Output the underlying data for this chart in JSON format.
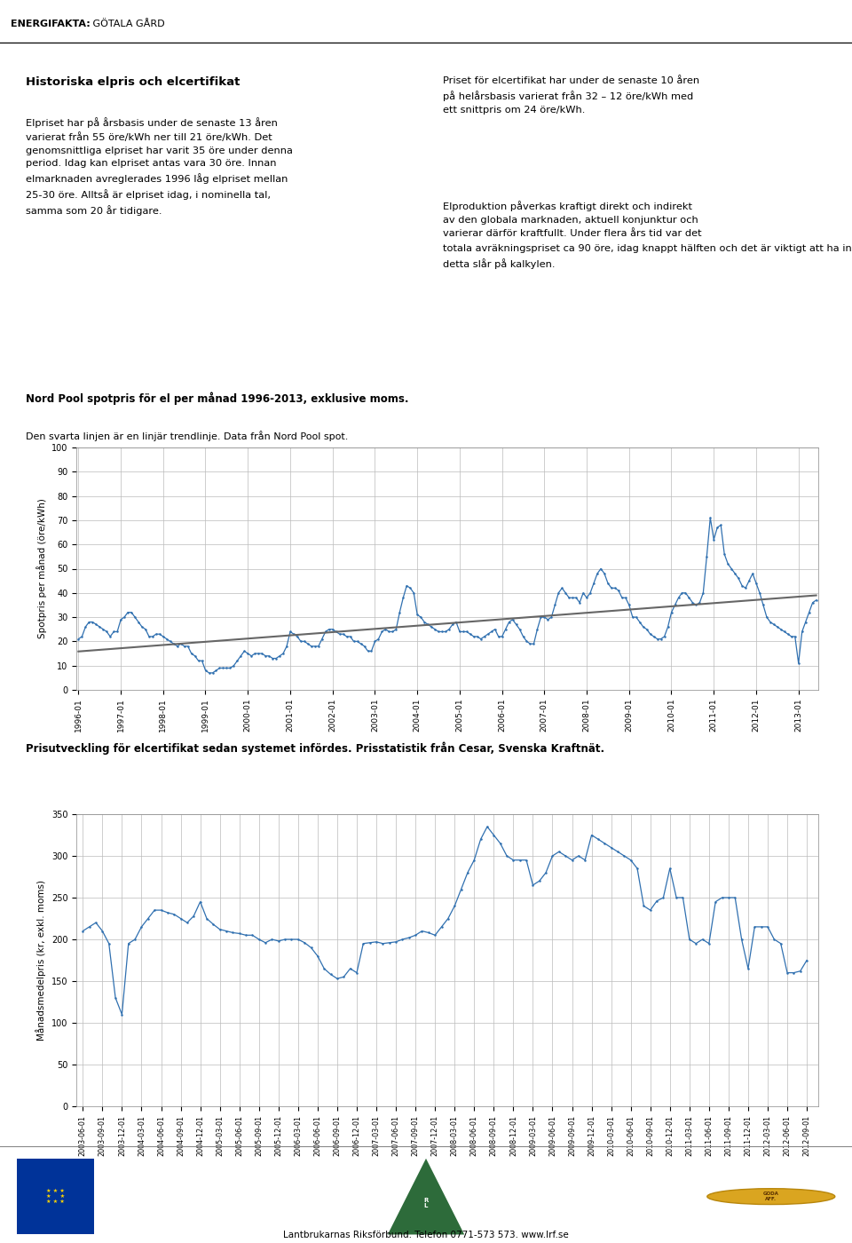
{
  "page_title_bold": "ENERGIFAKTA:",
  "page_title_normal": " GÖTALA GÅRD",
  "text_left_title": "Historiska elpris och elcertifikat",
  "text_left_body": "Elpriset har på årsbasis under de senaste 13 åren\nvarierat från 55 öre/kWh ner till 21 öre/kWh. Det\ngenomsnittliga elpriset har varit 35 öre under denna\nperiod. Idag kan elpriset antas vara 30 öre. Innan\nelmarknaden avreglerades 1996 låg elpriset mellan\n25-30 öre. Alltså är elpriset idag, i nominella tal,\nsamma som 20 år tidigare.",
  "text_right_para1": "Priset för elcertifikat har under de senaste 10 åren\npå helårsbasis varierat från 32 – 12 öre/kWh med\nett snittpris om 24 öre/kWh.",
  "text_right_para2": "Elproduktion påverkas kraftigt direkt och indirekt\nav den globala marknaden, aktuell konjunktur och\nvarierar därför kraftfullt. Under flera års tid var det\ntotala avräkningspriset ca 90 öre, idag knappt hälften och det är viktigt att ha insyn och förståelse hur\ndetta slår på kalkylen.",
  "chart1_title_bold": "Nord Pool spotpris för el per månad 1996-2013, exklusive moms.",
  "chart1_subtitle": "Den svarta linjen är en linjär trendlinje. Data från Nord Pool spot.",
  "chart1_ylabel": "Spotpris per månad (öre/kWh)",
  "chart1_ylim": [
    0,
    100
  ],
  "chart1_yticks": [
    0,
    10,
    20,
    30,
    40,
    50,
    60,
    70,
    80,
    90,
    100
  ],
  "chart1_line_color": "#3070b0",
  "chart1_trend_color": "#666666",
  "chart2_title_bold": "Prisutveckling för elcertifikat sedan systemet infördes. Prisstatistik från Cesar, Svenska Kraftnät.",
  "chart2_ylabel": "Månadsmedelpris (kr, exkl. moms)",
  "chart2_ylim": [
    0,
    350
  ],
  "chart2_yticks": [
    0,
    50,
    100,
    150,
    200,
    250,
    300,
    350
  ],
  "chart2_line_color": "#3070b0",
  "background_color": "#ffffff",
  "grid_color": "#bbbbbb",
  "footer_text": "Lantbrukarnas Riksförbund. Telefon 0771-573 573. www.lrf.se"
}
